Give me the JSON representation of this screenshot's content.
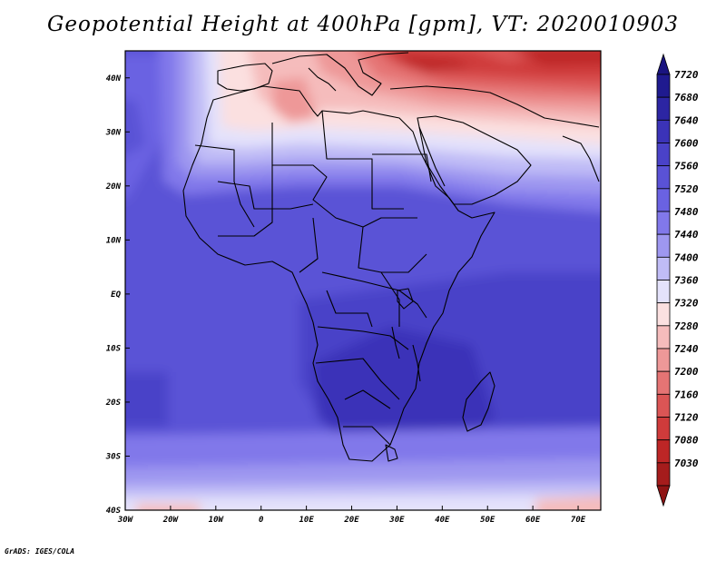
{
  "title": "Geopotential Height at 400hPa [gpm], VT: 2020010903",
  "credit": "GrADS: IGES/COLA",
  "map": {
    "lon_range": [
      -30,
      75
    ],
    "lat_range": [
      -40,
      45
    ],
    "lat_labels": [
      {
        "value": 40,
        "label": "40N"
      },
      {
        "value": 30,
        "label": "30N"
      },
      {
        "value": 20,
        "label": "20N"
      },
      {
        "value": 10,
        "label": "10N"
      },
      {
        "value": 0,
        "label": "EQ"
      },
      {
        "value": -10,
        "label": "10S"
      },
      {
        "value": -20,
        "label": "20S"
      },
      {
        "value": -30,
        "label": "30S"
      },
      {
        "value": -40,
        "label": "40S"
      }
    ],
    "lon_labels": [
      {
        "value": -30,
        "label": "30W"
      },
      {
        "value": -20,
        "label": "20W"
      },
      {
        "value": -10,
        "label": "10W"
      },
      {
        "value": 0,
        "label": "0"
      },
      {
        "value": 10,
        "label": "10E"
      },
      {
        "value": 20,
        "label": "20E"
      },
      {
        "value": 30,
        "label": "30E"
      },
      {
        "value": 40,
        "label": "40E"
      },
      {
        "value": 50,
        "label": "50E"
      },
      {
        "value": 60,
        "label": "60E"
      },
      {
        "value": 70,
        "label": "70E"
      }
    ]
  },
  "colorbar": {
    "levels": [
      {
        "label": "7720",
        "color": "#1f1a8f"
      },
      {
        "label": "7680",
        "color": "#2c25a3"
      },
      {
        "label": "7640",
        "color": "#3b33b8"
      },
      {
        "label": "7600",
        "color": "#4a42c8"
      },
      {
        "label": "7560",
        "color": "#5a52d6"
      },
      {
        "label": "7520",
        "color": "#6a62e2"
      },
      {
        "label": "7480",
        "color": "#8178ea"
      },
      {
        "label": "7440",
        "color": "#9e97f0"
      },
      {
        "label": "7400",
        "color": "#c0bcf6"
      },
      {
        "label": "7360",
        "color": "#e4e2fb"
      },
      {
        "label": "7320",
        "color": "#fbe0e0"
      },
      {
        "label": "7280",
        "color": "#f5bcbc"
      },
      {
        "label": "7240",
        "color": "#ee9898"
      },
      {
        "label": "7200",
        "color": "#e57474"
      },
      {
        "label": "7160",
        "color": "#db5555"
      },
      {
        "label": "7120",
        "color": "#cf3b3b"
      },
      {
        "label": "7080",
        "color": "#bd2626"
      },
      {
        "label": "7030",
        "color": "#a51c1c"
      }
    ],
    "top_arrow_color": "#1a1480",
    "bottom_arrow_color": "#8f1414"
  }
}
